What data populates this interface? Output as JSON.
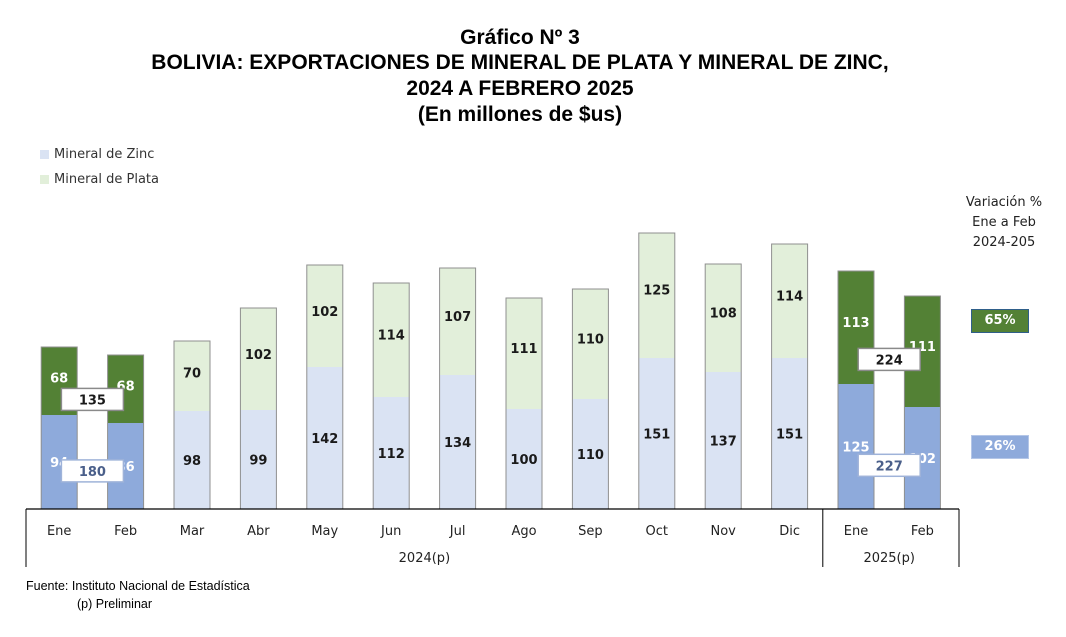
{
  "titles": {
    "line1": "Gráfico Nº 3",
    "line2": "BOLIVIA: EXPORTACIONES DE MINERAL DE PLATA Y MINERAL DE ZINC,",
    "line3": "2024 A FEBRERO 2025",
    "line4": "(En millones de $us)"
  },
  "legend": {
    "zinc": "Mineral de Zinc",
    "plata": "Mineral de Plata"
  },
  "colors": {
    "zinc_2024": "#dae3f3",
    "plata_2024": "#e2efda",
    "zinc_2025": "#8eaadb",
    "plata_2025": "#538135",
    "bar_border": "#8f8f8f",
    "label_dark": "#1a1a1a",
    "label_light": "#ffffff"
  },
  "variation": {
    "header_line1": "Variación %",
    "header_line2": "Ene a Feb",
    "header_line3": "2024-205",
    "plata": "65%",
    "zinc": "26%"
  },
  "chart_data": {
    "type": "bar",
    "stacked": true,
    "categories": [
      "Ene",
      "Feb",
      "Mar",
      "Abr",
      "May",
      "Jun",
      "Jul",
      "Ago",
      "Sep",
      "Oct",
      "Nov",
      "Dic",
      "Ene",
      "Feb"
    ],
    "groups": [
      {
        "label": "2024(p)",
        "from": 0,
        "to": 11
      },
      {
        "label": "2025(p)",
        "from": 12,
        "to": 13
      }
    ],
    "series": [
      {
        "name": "Mineral de Zinc",
        "values": [
          94,
          86,
          98,
          99,
          142,
          112,
          134,
          100,
          110,
          151,
          137,
          151,
          125,
          102
        ]
      },
      {
        "name": "Mineral de Plata",
        "values": [
          68,
          68,
          70,
          102,
          102,
          114,
          107,
          111,
          110,
          125,
          108,
          114,
          113,
          111
        ]
      }
    ],
    "totals": [
      {
        "label": "135",
        "series": "Mineral de Plata",
        "categories": [
          "Ene",
          "Feb"
        ],
        "period": "2024"
      },
      {
        "label": "180",
        "series": "Mineral de Zinc",
        "categories": [
          "Ene",
          "Feb"
        ],
        "period": "2024"
      },
      {
        "label": "224",
        "series": "Mineral de Plata",
        "categories": [
          "Ene",
          "Feb"
        ],
        "period": "2025"
      },
      {
        "label": "227",
        "series": "Mineral de Zinc",
        "categories": [
          "Ene",
          "Feb"
        ],
        "period": "2025"
      }
    ],
    "highlighted": [
      0,
      1,
      12,
      13
    ],
    "ylim": [
      0,
      300
    ],
    "xlabel": "",
    "ylabel": ""
  },
  "footer": {
    "source": "Fuente: Instituto Nacional de Estadística",
    "note": "(p) Preliminar"
  }
}
